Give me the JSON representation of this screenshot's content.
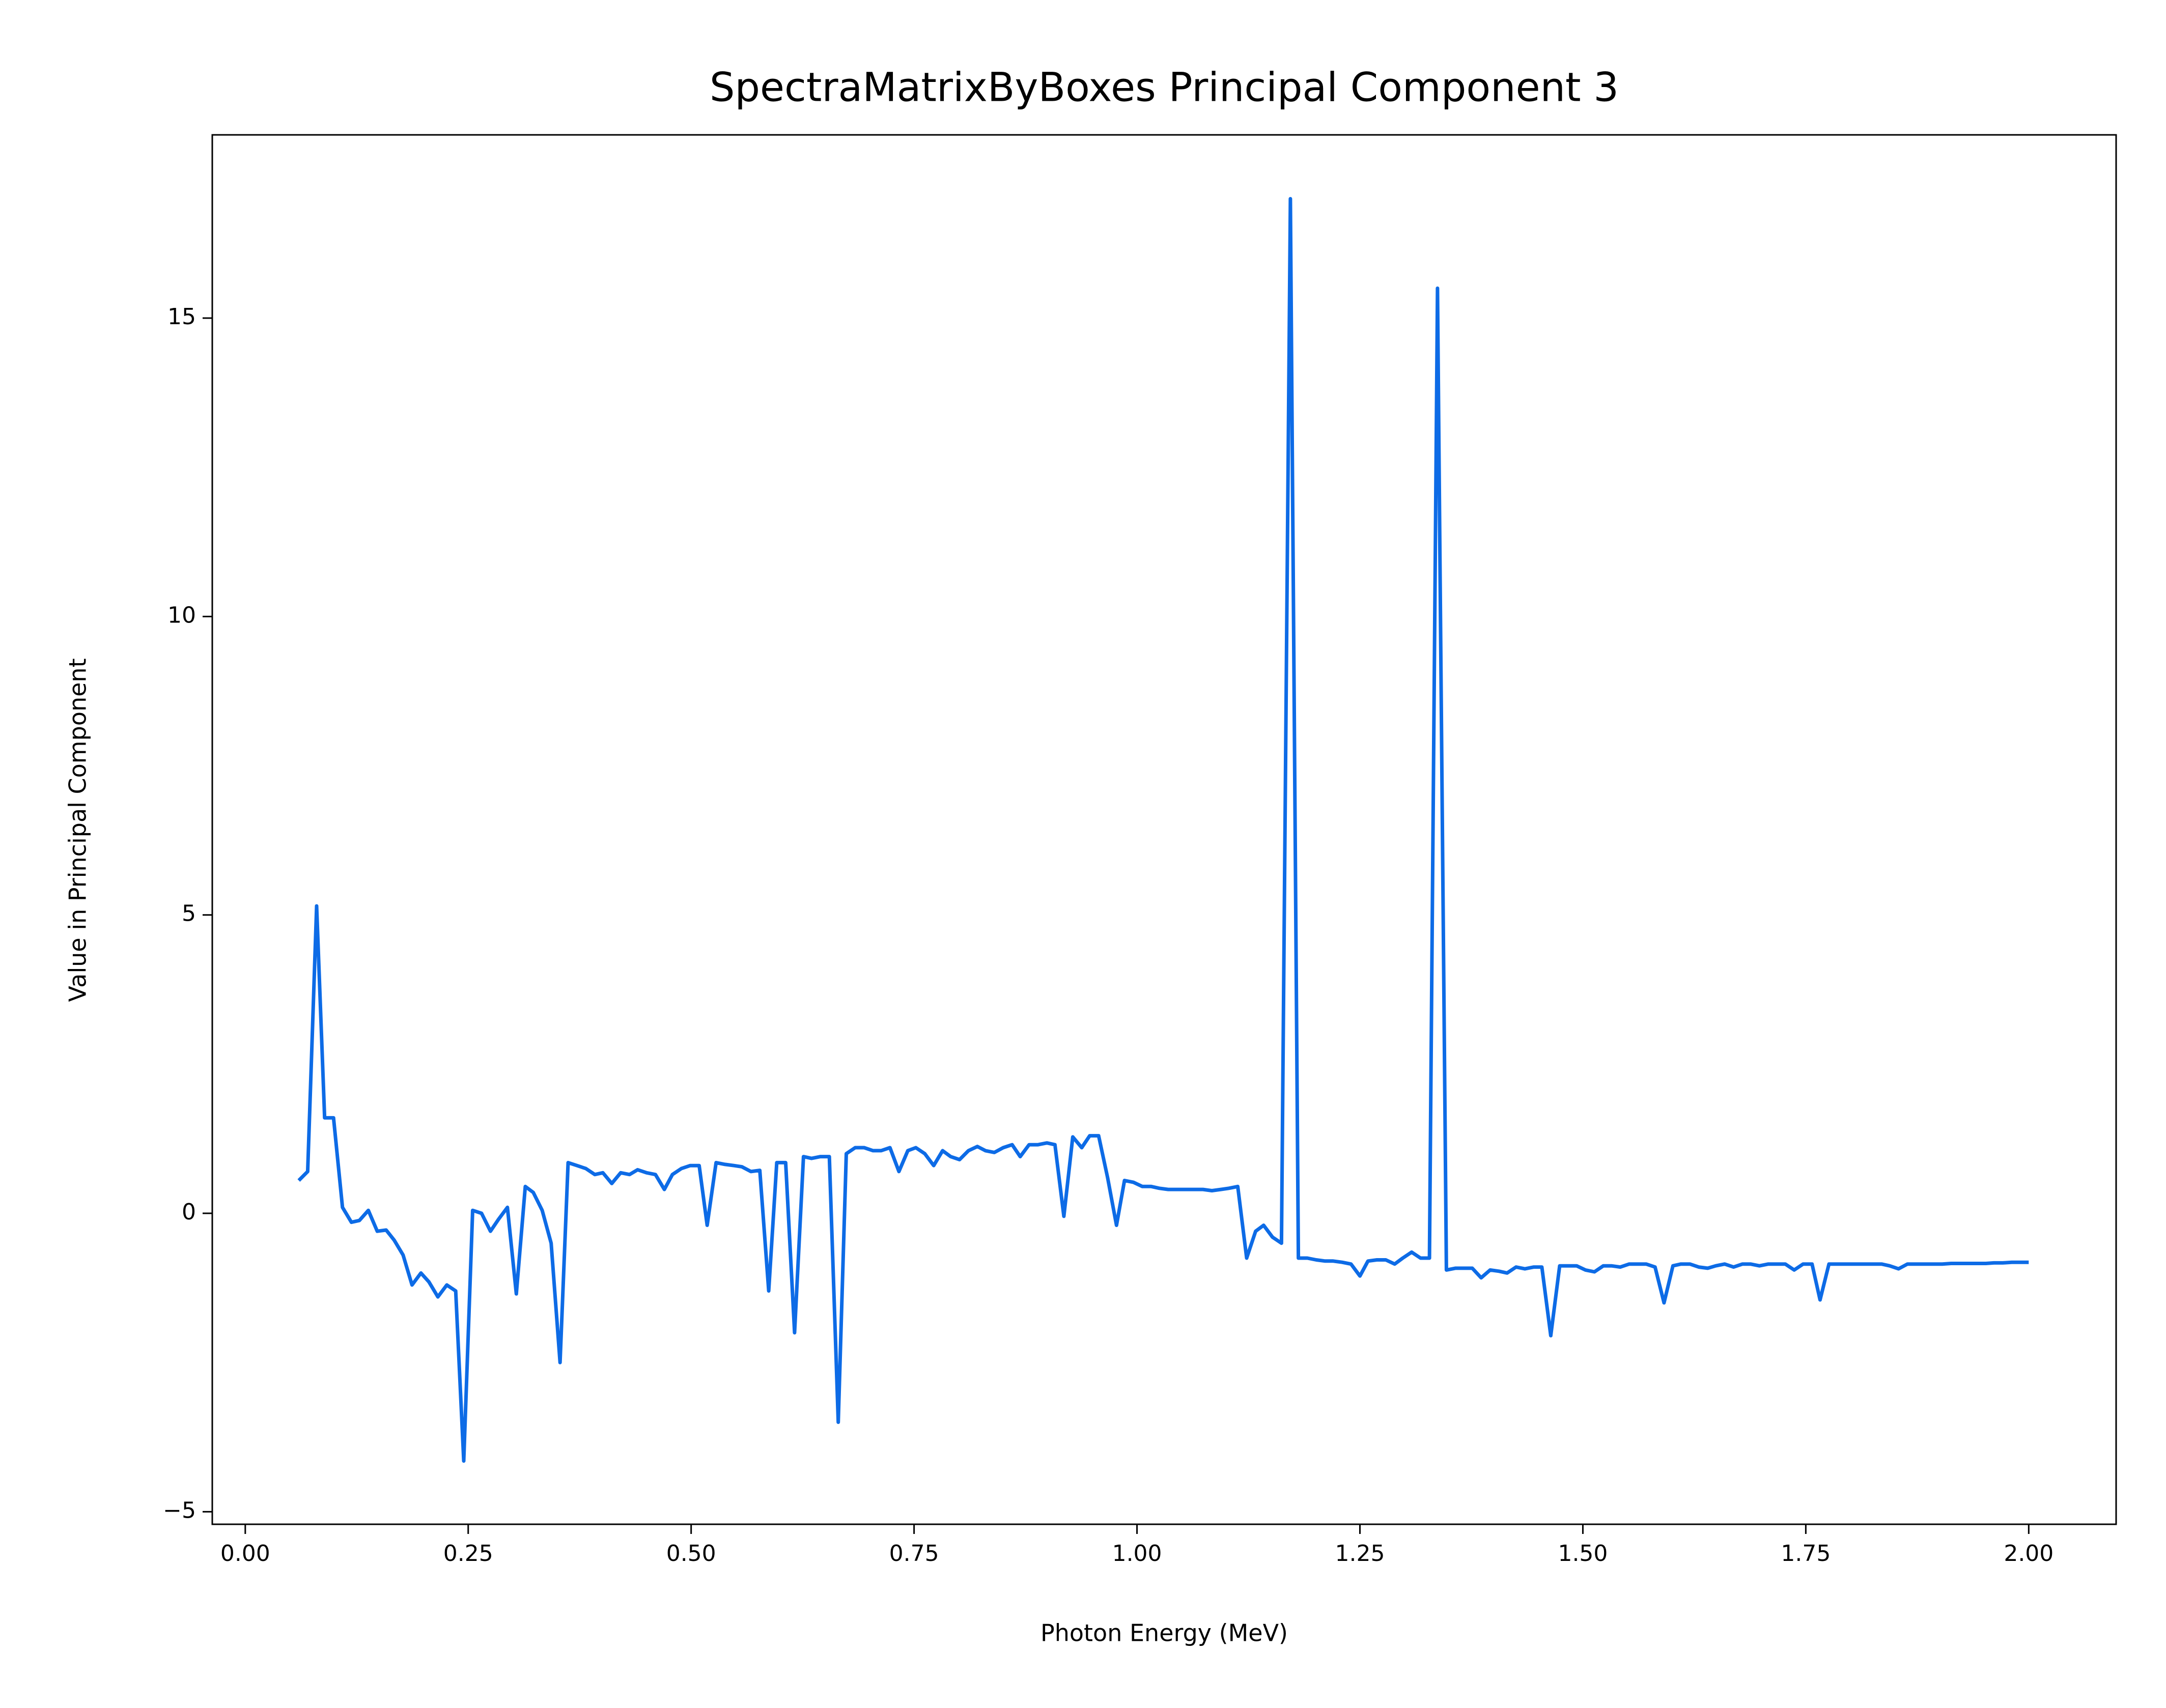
{
  "chart_data": {
    "type": "line",
    "title": "SpectraMatrixByBoxes Principal Component 3",
    "x_label": "Photon Energy (MeV)",
    "y_label": "Value in Principal Component",
    "color": "#0d6be6",
    "xlim": [
      -0.037,
      2.098
    ],
    "ylim": [
      -5.21,
      18.07
    ],
    "xticks": [
      {
        "value": 0,
        "label": "0.00"
      },
      {
        "value": 0.25,
        "label": "0.25"
      },
      {
        "value": 0.5,
        "label": "0.50"
      },
      {
        "value": 0.75,
        "label": "0.75"
      },
      {
        "value": 1,
        "label": "1.00"
      },
      {
        "value": 1.25,
        "label": "1.25"
      },
      {
        "value": 1.5,
        "label": "1.50"
      },
      {
        "value": 1.75,
        "label": "1.75"
      },
      {
        "value": 2,
        "label": "2.00"
      }
    ],
    "yticks": [
      {
        "value": -5,
        "label": "−5"
      },
      0,
      5,
      10,
      15
    ],
    "x": [
      0.06,
      0.07,
      0.08,
      0.089,
      0.099,
      0.109,
      0.119,
      0.128,
      0.138,
      0.148,
      0.158,
      0.167,
      0.177,
      0.187,
      0.197,
      0.206,
      0.216,
      0.226,
      0.236,
      0.245,
      0.255,
      0.265,
      0.275,
      0.284,
      0.294,
      0.304,
      0.314,
      0.323,
      0.333,
      0.343,
      0.353,
      0.362,
      0.372,
      0.382,
      0.392,
      0.401,
      0.411,
      0.421,
      0.431,
      0.44,
      0.45,
      0.46,
      0.47,
      0.479,
      0.489,
      0.499,
      0.509,
      0.518,
      0.528,
      0.538,
      0.548,
      0.557,
      0.567,
      0.577,
      0.587,
      0.596,
      0.606,
      0.616,
      0.626,
      0.635,
      0.645,
      0.655,
      0.665,
      0.674,
      0.684,
      0.694,
      0.704,
      0.713,
      0.723,
      0.733,
      0.743,
      0.752,
      0.762,
      0.772,
      0.782,
      0.791,
      0.801,
      0.811,
      0.821,
      0.83,
      0.84,
      0.85,
      0.86,
      0.869,
      0.879,
      0.889,
      0.899,
      0.908,
      0.918,
      0.928,
      0.938,
      0.947,
      0.957,
      0.967,
      0.977,
      0.986,
      0.996,
      1.006,
      1.016,
      1.025,
      1.035,
      1.045,
      1.055,
      1.064,
      1.074,
      1.084,
      1.094,
      1.103,
      1.113,
      1.123,
      1.133,
      1.142,
      1.152,
      1.162,
      1.172,
      1.181,
      1.191,
      1.201,
      1.211,
      1.22,
      1.23,
      1.24,
      1.25,
      1.259,
      1.269,
      1.279,
      1.289,
      1.298,
      1.308,
      1.318,
      1.328,
      1.337,
      1.347,
      1.357,
      1.367,
      1.376,
      1.386,
      1.396,
      1.406,
      1.415,
      1.425,
      1.435,
      1.445,
      1.454,
      1.464,
      1.474,
      1.484,
      1.493,
      1.503,
      1.513,
      1.523,
      1.532,
      1.542,
      1.552,
      1.562,
      1.571,
      1.581,
      1.591,
      1.601,
      1.61,
      1.62,
      1.63,
      1.64,
      1.649,
      1.659,
      1.669,
      1.679,
      1.688,
      1.698,
      1.708,
      1.718,
      1.727,
      1.737,
      1.747,
      1.757,
      1.766,
      1.776,
      1.786,
      1.796,
      1.805,
      1.815,
      1.825,
      1.835,
      1.844,
      1.854,
      1.864,
      1.874,
      1.883,
      1.893,
      1.903,
      1.913,
      1.922,
      1.932,
      1.942,
      1.952,
      1.961,
      1.971,
      1.981,
      1.991,
      2.0
    ],
    "values": [
      0.55,
      0.7,
      5.15,
      1.6,
      1.6,
      0.1,
      -0.15,
      -0.12,
      0.05,
      -0.3,
      -0.28,
      -0.45,
      -0.7,
      -1.2,
      -1.0,
      -1.15,
      -1.4,
      -1.2,
      -1.3,
      -4.15,
      0.05,
      0.0,
      -0.3,
      -0.1,
      0.1,
      -1.35,
      0.45,
      0.35,
      0.05,
      -0.5,
      -2.5,
      0.85,
      0.8,
      0.75,
      0.65,
      0.68,
      0.5,
      0.68,
      0.65,
      0.73,
      0.68,
      0.65,
      0.4,
      0.65,
      0.75,
      0.8,
      0.8,
      -0.2,
      0.85,
      0.82,
      0.8,
      0.78,
      0.7,
      0.72,
      -1.3,
      0.85,
      0.85,
      -2.0,
      0.95,
      0.92,
      0.95,
      0.95,
      -3.5,
      1.0,
      1.1,
      1.1,
      1.05,
      1.05,
      1.1,
      0.7,
      1.05,
      1.1,
      1.0,
      0.8,
      1.05,
      0.95,
      0.9,
      1.05,
      1.12,
      1.05,
      1.02,
      1.1,
      1.15,
      0.95,
      1.15,
      1.15,
      1.18,
      1.15,
      -0.05,
      1.28,
      1.1,
      1.3,
      1.3,
      0.6,
      -0.2,
      0.55,
      0.52,
      0.45,
      0.45,
      0.42,
      0.4,
      0.4,
      0.4,
      0.4,
      0.4,
      0.38,
      0.4,
      0.42,
      0.45,
      -0.75,
      -0.3,
      -0.2,
      -0.4,
      -0.5,
      17.0,
      -0.75,
      -0.75,
      -0.78,
      -0.8,
      -0.8,
      -0.82,
      -0.85,
      -1.05,
      -0.8,
      -0.78,
      -0.78,
      -0.85,
      -0.75,
      -0.65,
      -0.75,
      -0.75,
      15.5,
      -0.95,
      -0.92,
      -0.92,
      -0.92,
      -1.08,
      -0.95,
      -0.97,
      -1.0,
      -0.9,
      -0.93,
      -0.9,
      -0.9,
      -2.05,
      -0.88,
      -0.88,
      -0.88,
      -0.95,
      -0.98,
      -0.88,
      -0.88,
      -0.9,
      -0.85,
      -0.85,
      -0.85,
      -0.9,
      -1.5,
      -0.88,
      -0.85,
      -0.85,
      -0.9,
      -0.92,
      -0.88,
      -0.85,
      -0.9,
      -0.85,
      -0.85,
      -0.88,
      -0.85,
      -0.85,
      -0.85,
      -0.95,
      -0.85,
      -0.85,
      -1.45,
      -0.85,
      -0.85,
      -0.85,
      -0.85,
      -0.85,
      -0.85,
      -0.85,
      -0.88,
      -0.93,
      -0.85,
      -0.85,
      -0.85,
      -0.85,
      -0.85,
      -0.84,
      -0.84,
      -0.84,
      -0.84,
      -0.84,
      -0.83,
      -0.83,
      -0.82,
      -0.82,
      -0.82
    ]
  }
}
